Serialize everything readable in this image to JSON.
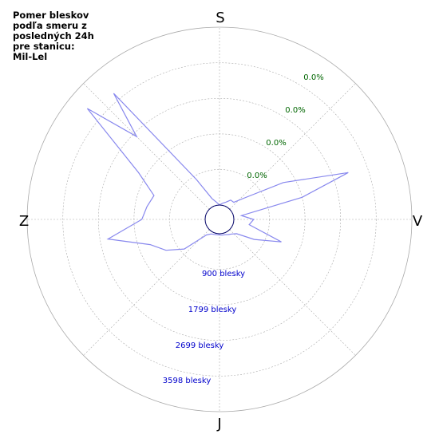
{
  "title_lines": [
    "Pomer bleskov",
    "podľa smeru z",
    "posledných 24h",
    "pre stanicu:",
    "Mil-Lel"
  ],
  "colors": {
    "series": "#8888ee",
    "count_labels": "#0000cc",
    "percent_labels": "#006600",
    "grid": "#aaaaaa",
    "center_circle": "#000066"
  },
  "chart_data": {
    "type": "polar-line",
    "title": "Pomer bleskov podľa smeru z posledných 24h pre stanicu: Mil-Lel",
    "directions": {
      "top": "S",
      "right": "V",
      "bottom": "J",
      "left": "Z"
    },
    "radial_max": 4500,
    "rings": [
      900,
      1799,
      2699,
      3598,
      4500
    ],
    "count_labels": [
      "900 blesky",
      "1799 blesky",
      "2699 blesky",
      "3598 blesky"
    ],
    "percent_labels": [
      "0.0%",
      "0.0%",
      "0.0%",
      "0.0%"
    ],
    "series": [
      {
        "angle_deg": [
          0,
          10,
          20,
          30,
          40,
          50,
          60,
          70,
          75,
          80,
          90,
          100,
          110,
          120,
          130,
          140,
          150,
          160,
          170,
          180,
          190,
          200,
          210,
          220,
          230,
          240,
          250,
          260,
          270,
          280,
          290,
          300,
          310,
          315,
          320,
          330,
          340,
          350,
          360
        ],
        "count": [
          0,
          50,
          100,
          200,
          200,
          500,
          1500,
          3100,
          1800,
          200,
          500,
          400,
          1300,
          650,
          200,
          120,
          80,
          50,
          40,
          30,
          30,
          40,
          60,
          150,
          800,
          1200,
          1500,
          2500,
          1600,
          1500,
          1400,
          2000,
          4000,
          2600,
          3800,
          800,
          200,
          80,
          0
        ]
      }
    ]
  }
}
